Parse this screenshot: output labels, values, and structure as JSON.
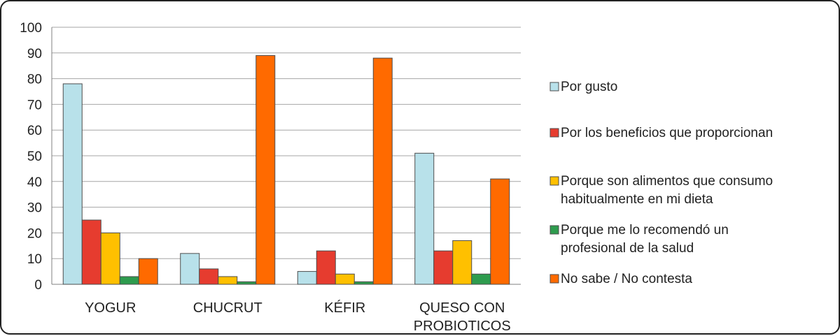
{
  "chart_data": {
    "type": "bar",
    "categories": [
      "YOGUR",
      "CHUCRUT",
      "KÉFIR",
      "QUESO CON PROBIOTICOS"
    ],
    "category_lines": [
      [
        "YOGUR"
      ],
      [
        "CHUCRUT"
      ],
      [
        "KÉFIR"
      ],
      [
        "QUESO CON",
        "PROBIOTICOS"
      ]
    ],
    "series": [
      {
        "name": "Por gusto",
        "name_lines": [
          "Por gusto"
        ],
        "color": "#b8e1ea",
        "values": [
          78,
          12,
          5,
          51
        ]
      },
      {
        "name": "Por los beneficios que proporcionan",
        "name_lines": [
          "Por los beneficios que proporcionan"
        ],
        "color": "#e63c2f",
        "values": [
          25,
          6,
          13,
          13
        ]
      },
      {
        "name": "Porque son alimentos que consumo habitualmente en mi dieta",
        "name_lines": [
          "Porque son alimentos que consumo",
          "habitualmente en mi dieta"
        ],
        "color": "#ffc000",
        "values": [
          20,
          3,
          4,
          17
        ]
      },
      {
        "name": "Porque me lo recomendó un profesional de la salud",
        "name_lines": [
          "Porque me lo recomendó un",
          "profesional de la salud"
        ],
        "color": "#2e9c4e",
        "values": [
          3,
          1,
          1,
          4
        ]
      },
      {
        "name": "No sabe / No contesta",
        "name_lines": [
          "No sabe / No contesta"
        ],
        "color": "#ff6a00",
        "values": [
          10,
          89,
          88,
          41
        ]
      }
    ],
    "ylim": [
      0,
      100
    ],
    "yticks": [
      0,
      10,
      20,
      30,
      40,
      50,
      60,
      70,
      80,
      90,
      100
    ],
    "grid": true,
    "legend": "right",
    "title": "",
    "xlabel": "",
    "ylabel": ""
  }
}
